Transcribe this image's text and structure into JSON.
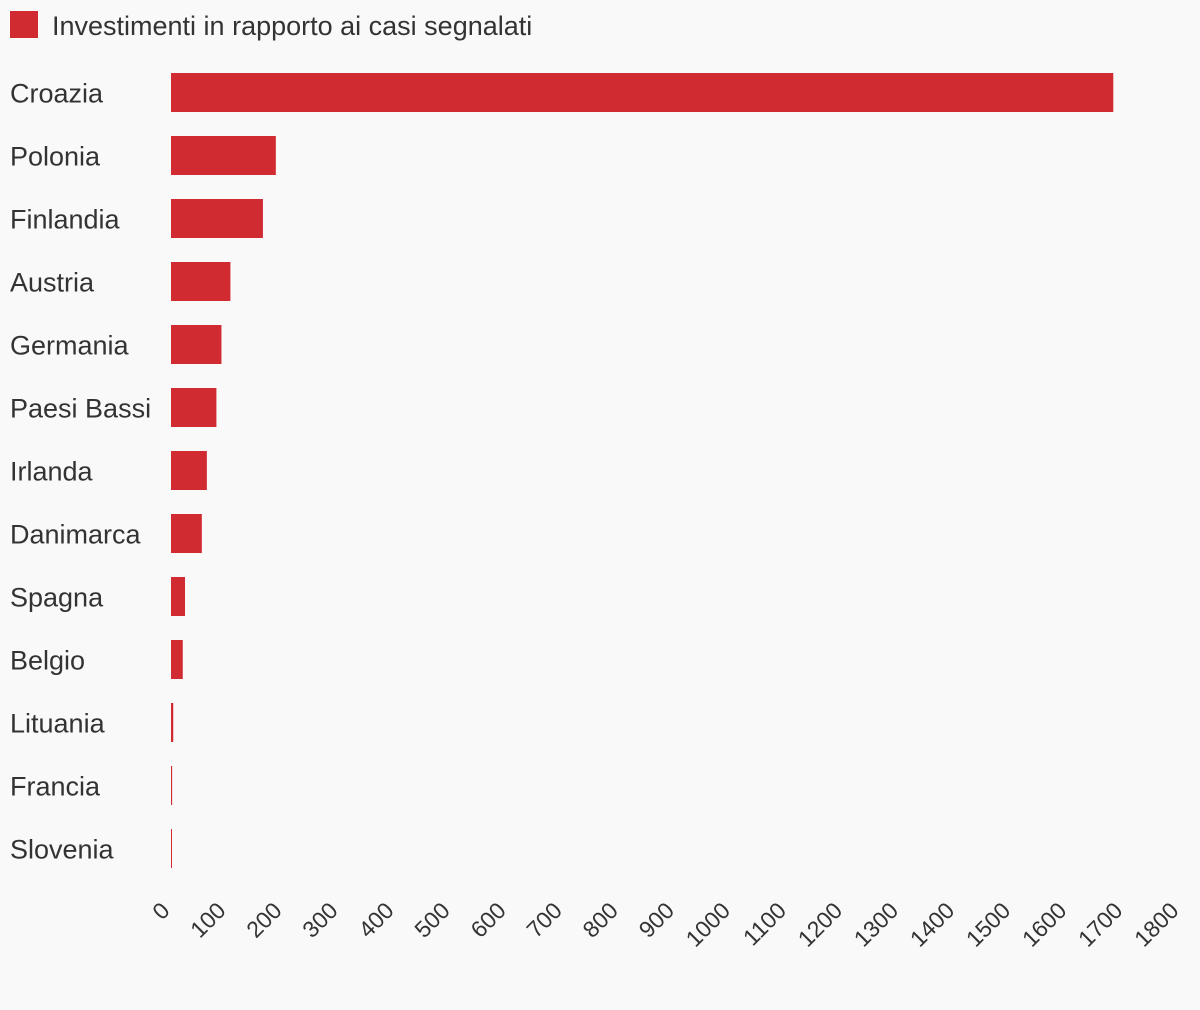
{
  "chart_data": {
    "type": "bar",
    "orientation": "horizontal",
    "legend": {
      "label": "Investimenti in rapporto ai casi segnalati",
      "placement": "top-left"
    },
    "categories": [
      "Croazia",
      "Polonia",
      "Finlandia",
      "Austria",
      "Germania",
      "Paesi Bassi",
      "Irlanda",
      "Danimarca",
      "Spagna",
      "Belgio",
      "Lituania",
      "Francia",
      "Slovenia"
    ],
    "series": [
      {
        "name": "Investimenti in rapporto ai casi segnalati",
        "color": "#d12b32",
        "values": [
          1681,
          187,
          164,
          106,
          90,
          81,
          64,
          55,
          25,
          21,
          4,
          2,
          0.5
        ]
      }
    ],
    "xlim": [
      0,
      1800
    ],
    "xticks": [
      0,
      100,
      200,
      300,
      400,
      500,
      600,
      700,
      800,
      900,
      1000,
      1100,
      1200,
      1300,
      1400,
      1500,
      1600,
      1700,
      1800
    ],
    "grid": false
  }
}
